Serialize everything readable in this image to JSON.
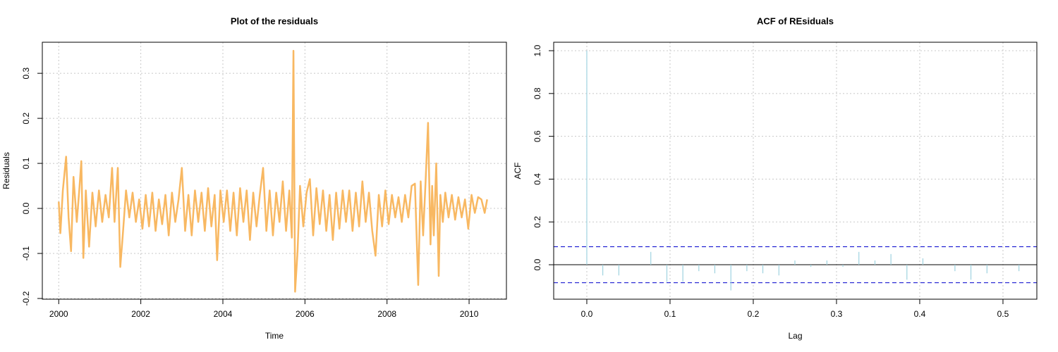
{
  "chart_data": [
    {
      "type": "line",
      "title": "Plot of the residuals",
      "x_label": "Time",
      "y_label": "Residuals",
      "x": [
        2000.0,
        2000.04,
        2000.1,
        2000.18,
        2000.24,
        2000.3,
        2000.36,
        2000.44,
        2000.5,
        2000.55,
        2000.6,
        2000.66,
        2000.74,
        2000.82,
        2000.9,
        2000.98,
        2001.06,
        2001.14,
        2001.22,
        2001.3,
        2001.36,
        2001.44,
        2001.5,
        2001.56,
        2001.64,
        2001.72,
        2001.8,
        2001.88,
        2001.96,
        2002.04,
        2002.12,
        2002.2,
        2002.28,
        2002.36,
        2002.44,
        2002.52,
        2002.6,
        2002.68,
        2002.76,
        2002.84,
        2002.92,
        2003.0,
        2003.08,
        2003.16,
        2003.24,
        2003.32,
        2003.4,
        2003.48,
        2003.56,
        2003.64,
        2003.72,
        2003.8,
        2003.86,
        2003.94,
        2004.02,
        2004.1,
        2004.18,
        2004.26,
        2004.34,
        2004.42,
        2004.5,
        2004.58,
        2004.66,
        2004.74,
        2004.82,
        2004.9,
        2004.98,
        2005.06,
        2005.14,
        2005.22,
        2005.3,
        2005.38,
        2005.46,
        2005.54,
        2005.62,
        2005.68,
        2005.72,
        2005.76,
        2005.82,
        2005.88,
        2005.96,
        2006.04,
        2006.12,
        2006.2,
        2006.28,
        2006.36,
        2006.44,
        2006.52,
        2006.6,
        2006.68,
        2006.76,
        2006.84,
        2006.92,
        2007.0,
        2007.08,
        2007.16,
        2007.24,
        2007.32,
        2007.4,
        2007.48,
        2007.56,
        2007.64,
        2007.72,
        2007.8,
        2007.88,
        2007.96,
        2008.04,
        2008.12,
        2008.2,
        2008.28,
        2008.36,
        2008.44,
        2008.52,
        2008.6,
        2008.68,
        2008.76,
        2008.82,
        2008.88,
        2008.94,
        2009.0,
        2009.06,
        2009.1,
        2009.14,
        2009.2,
        2009.26,
        2009.3,
        2009.36,
        2009.42,
        2009.5,
        2009.58,
        2009.66,
        2009.74,
        2009.82,
        2009.9,
        2009.98,
        2010.06,
        2010.14,
        2010.22,
        2010.3,
        2010.38,
        2010.44
      ],
      "values": [
        0.015,
        -0.055,
        0.04,
        0.115,
        -0.02,
        -0.095,
        0.07,
        -0.03,
        0.04,
        0.105,
        -0.11,
        0.04,
        -0.085,
        0.035,
        -0.04,
        0.04,
        -0.03,
        0.03,
        -0.02,
        0.09,
        -0.03,
        0.09,
        -0.13,
        -0.06,
        0.04,
        -0.02,
        0.035,
        -0.03,
        0.02,
        -0.045,
        0.03,
        -0.04,
        0.035,
        -0.05,
        0.02,
        -0.035,
        0.03,
        -0.06,
        0.035,
        -0.03,
        0.02,
        0.09,
        -0.05,
        0.03,
        -0.06,
        0.04,
        -0.03,
        0.035,
        -0.05,
        0.045,
        -0.04,
        0.03,
        -0.115,
        0.04,
        -0.03,
        0.04,
        -0.05,
        0.035,
        -0.06,
        0.045,
        -0.03,
        0.04,
        -0.07,
        0.035,
        -0.04,
        0.03,
        0.09,
        -0.05,
        0.04,
        -0.06,
        0.035,
        -0.03,
        0.06,
        -0.05,
        0.04,
        -0.065,
        0.35,
        -0.185,
        -0.095,
        0.05,
        -0.04,
        0.035,
        0.065,
        -0.06,
        0.045,
        -0.035,
        0.04,
        -0.05,
        0.03,
        -0.07,
        0.035,
        -0.045,
        0.04,
        -0.03,
        0.04,
        -0.05,
        0.035,
        -0.04,
        0.06,
        -0.03,
        0.035,
        -0.05,
        -0.105,
        0.03,
        -0.04,
        0.04,
        -0.035,
        0.03,
        -0.02,
        0.025,
        -0.03,
        0.03,
        -0.02,
        0.05,
        0.055,
        -0.17,
        0.06,
        -0.06,
        0.06,
        0.19,
        -0.08,
        0.05,
        -0.06,
        0.1,
        -0.15,
        0.03,
        -0.03,
        0.035,
        -0.02,
        0.03,
        -0.025,
        0.025,
        -0.02,
        0.02,
        -0.045,
        0.03,
        -0.01,
        0.025,
        0.02,
        -0.01,
        0.02
      ],
      "color": "#f8b862",
      "xlim": [
        1999.6,
        2010.91
      ],
      "xticks": [
        2000,
        2002,
        2004,
        2006,
        2008,
        2010
      ],
      "ylim": [
        -0.2016,
        0.369
      ],
      "yticks": [
        -0.2,
        -0.1,
        {
          "value": 0,
          "label": "0.0"
        },
        0.1,
        0.2,
        0.3
      ],
      "grid": true
    },
    {
      "type": "acf",
      "title": "ACF of REsiduals",
      "x_label": "Lag",
      "y_label": "ACF",
      "x": [
        0,
        0.0192,
        0.0385,
        0.0577,
        0.0769,
        0.0962,
        0.1154,
        0.1346,
        0.1538,
        0.1731,
        0.1923,
        0.2115,
        0.2308,
        0.25,
        0.2692,
        0.2885,
        0.3077,
        0.3269,
        0.3462,
        0.3654,
        0.3846,
        0.4038,
        0.4231,
        0.4423,
        0.4615,
        0.4808,
        0.5,
        0.5192
      ],
      "values": [
        1,
        -0.05,
        -0.05,
        0,
        0.06,
        -0.08,
        -0.08,
        -0.03,
        -0.04,
        -0.12,
        -0.03,
        -0.04,
        -0.05,
        0.02,
        -0.01,
        0.02,
        -0.01,
        0.06,
        0.02,
        0.05,
        -0.07,
        0.03,
        0,
        -0.03,
        -0.07,
        -0.04,
        0,
        -0.03
      ],
      "color": "#9fd3e0",
      "confidence_bounds": [
        0.084,
        -0.084
      ],
      "bound_color": "#0000cc",
      "xlim": [
        -0.0398,
        0.5407
      ],
      "xticks": [
        {
          "value": 0,
          "label": "0.0"
        },
        0.1,
        0.2,
        0.3,
        0.4,
        0.5
      ],
      "ylim": [
        -0.161,
        1.0395
      ],
      "yticks": [
        {
          "value": 0,
          "label": "0.0"
        },
        0.2,
        0.4,
        0.6,
        0.8,
        {
          "value": 1,
          "label": "1.0"
        }
      ],
      "grid": true
    }
  ]
}
